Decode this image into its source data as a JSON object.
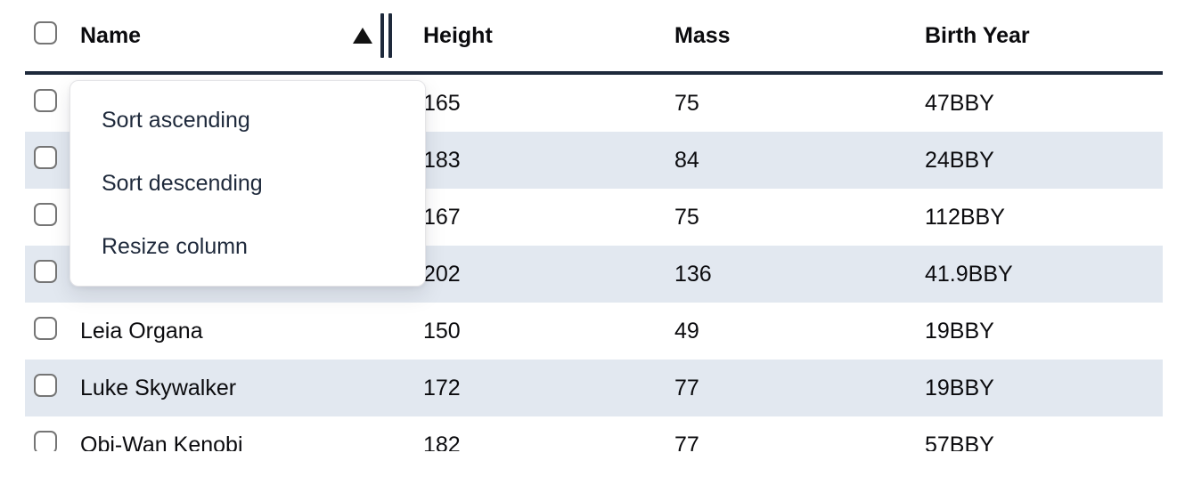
{
  "table": {
    "columns": [
      {
        "label": "Name"
      },
      {
        "label": "Height"
      },
      {
        "label": "Mass"
      },
      {
        "label": "Birth Year"
      }
    ],
    "sort": {
      "column": "Name",
      "direction": "ascending"
    },
    "rows": [
      {
        "name": "",
        "height": "165",
        "mass": "75",
        "birth_year": "47BBY"
      },
      {
        "name": "",
        "height": "183",
        "mass": "84",
        "birth_year": "24BBY"
      },
      {
        "name": "",
        "height": "167",
        "mass": "75",
        "birth_year": "112BBY"
      },
      {
        "name": "",
        "height": "202",
        "mass": "136",
        "birth_year": "41.9BBY"
      },
      {
        "name": "Leia Organa",
        "height": "150",
        "mass": "49",
        "birth_year": "19BBY"
      },
      {
        "name": "Luke Skywalker",
        "height": "172",
        "mass": "77",
        "birth_year": "19BBY"
      },
      {
        "name": "Obi-Wan Kenobi",
        "height": "182",
        "mass": "77",
        "birth_year": "57BBY"
      }
    ]
  },
  "context_menu": {
    "items": [
      {
        "label": "Sort ascending"
      },
      {
        "label": "Sort descending"
      },
      {
        "label": "Resize column"
      }
    ]
  },
  "icons": {
    "sort_ascending": "triangle-up",
    "resize_handle": "double-vertical-bars"
  },
  "colors": {
    "stripe_row": "#e2e8f0",
    "header_border": "#1e293b",
    "menu_text": "#1e293b",
    "checkbox_border": "#757575"
  }
}
